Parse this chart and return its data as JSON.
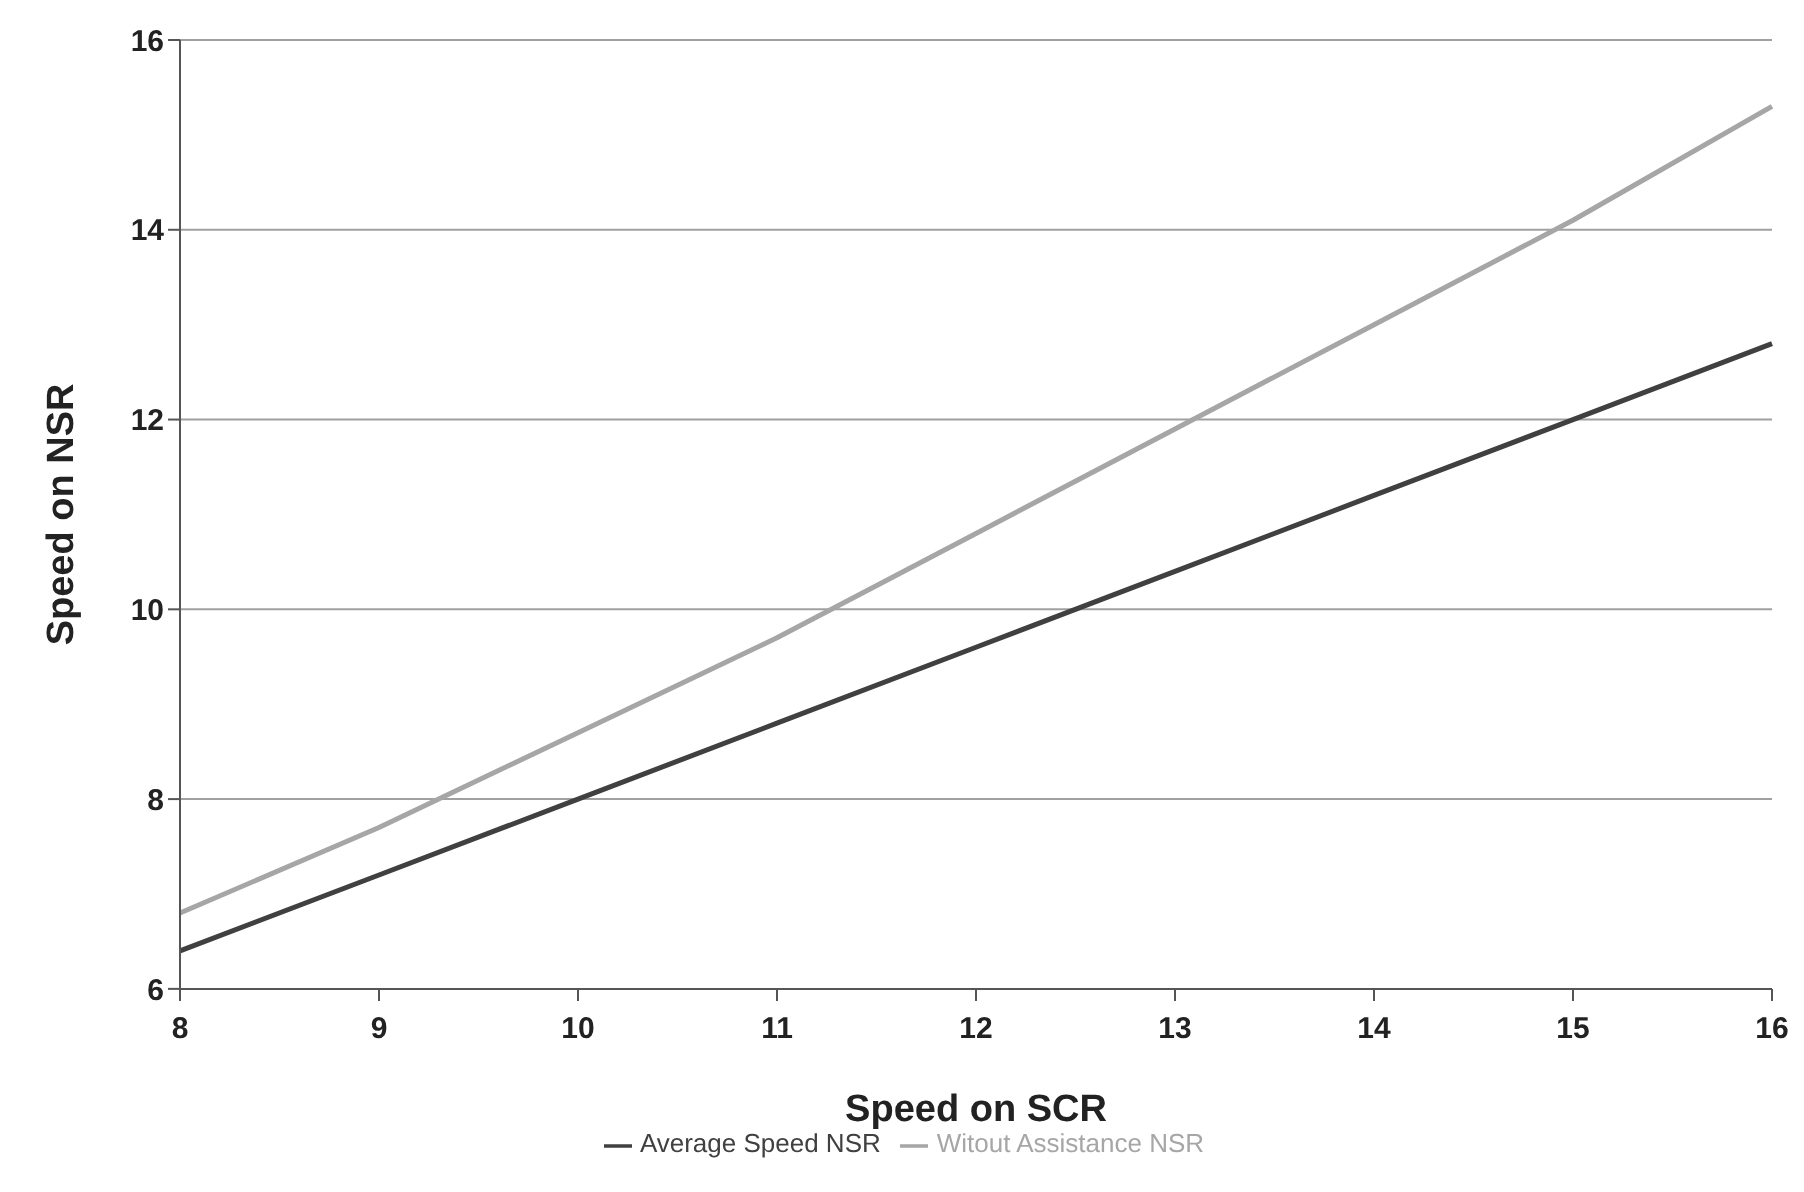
{
  "chart_data": {
    "type": "line",
    "xlabel": "Speed on SCR",
    "ylabel": "Speed on NSR",
    "categories": [
      "8",
      "9",
      "10",
      "11",
      "12",
      "13",
      "14",
      "15",
      "16"
    ],
    "series": [
      {
        "name": "Witout Assistance NSR",
        "color": "#a6a6a6",
        "values": [
          6.8,
          7.7,
          8.7,
          9.7,
          10.8,
          11.9,
          13.0,
          14.1,
          15.3
        ]
      },
      {
        "name": "Average Speed NSR",
        "color": "#404040",
        "values": [
          6.4,
          7.2,
          8.0,
          8.8,
          9.6,
          10.4,
          11.2,
          12.0,
          12.8
        ]
      }
    ],
    "ylim": [
      6,
      16
    ],
    "yticks": [
      6,
      8,
      10,
      12,
      14,
      16
    ],
    "grid": "y",
    "legend": "bottom",
    "marker": "none",
    "line_style": "solid"
  }
}
